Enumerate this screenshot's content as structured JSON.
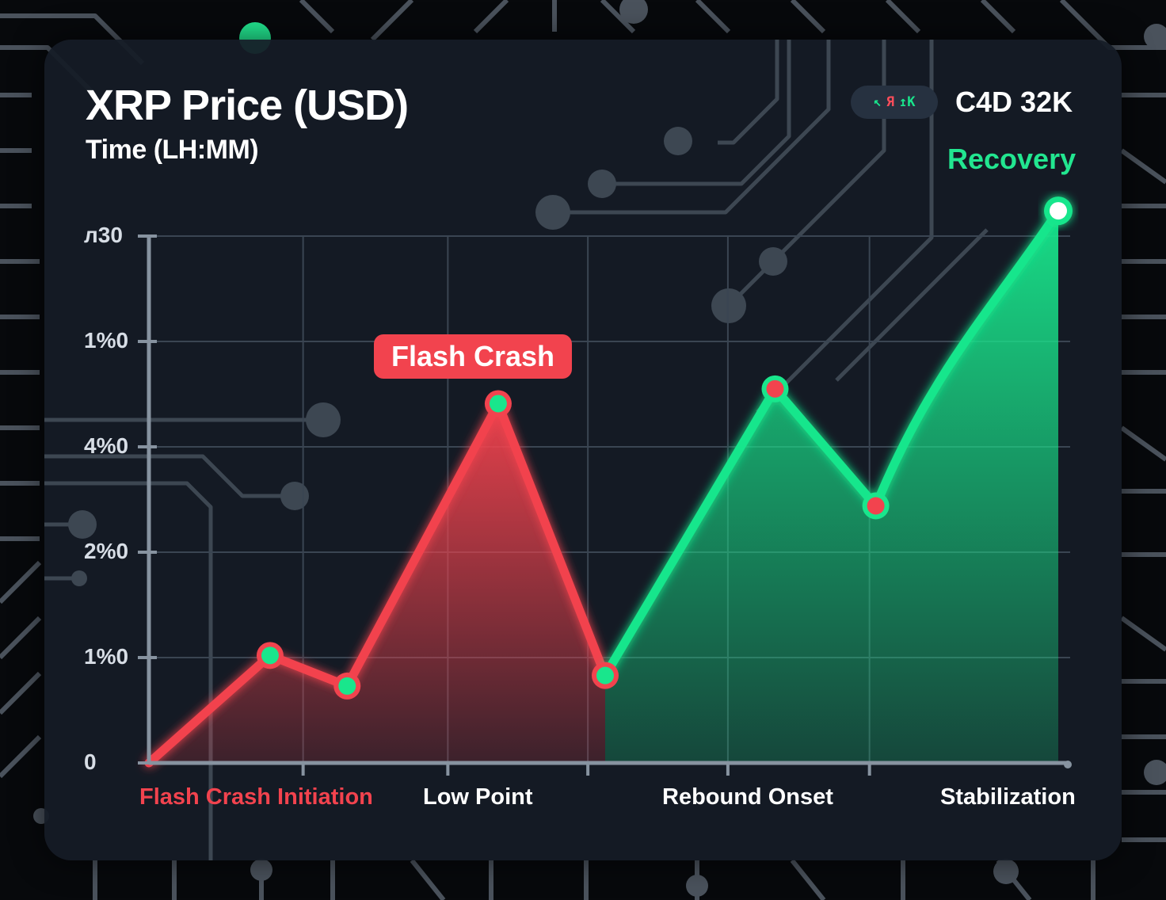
{
  "header": {
    "title": "XRP Price (USD)",
    "subtitle": "Time (LH:MM)",
    "badge_parts": [
      "↖",
      "Я",
      "↥K"
    ],
    "value": "C4D 32K"
  },
  "annotations": {
    "crash_label": "Flash Crash",
    "recovery_label": "Recovery"
  },
  "colors": {
    "crash": "#f2434e",
    "recovery": "#19e68c",
    "panel": "#151c26",
    "grid": "#3a4552"
  },
  "chart_data": {
    "type": "area",
    "title": "XRP Price (USD)",
    "xlabel": "Time (LH:MM)",
    "ylabel": "",
    "y_tick_labels": [
      "0",
      "1%0",
      "2%0",
      "4%0",
      "1%0",
      "л30"
    ],
    "x_tick_labels": [
      "Flash Crash Initiation",
      "Low Point",
      "Rebound Onset",
      "Stabilization"
    ],
    "x": [
      0,
      0.77,
      1.26,
      2.22,
      2.9,
      3.98,
      4.62,
      5.78
    ],
    "ylim": [
      0,
      5
    ],
    "grid": true,
    "legend": "none",
    "series": [
      {
        "segment": "crash",
        "color": "#f2434e",
        "points": [
          {
            "x": 0,
            "y": 0.0
          },
          {
            "x": 0.77,
            "y": 1.02
          },
          {
            "x": 1.26,
            "y": 0.73
          },
          {
            "x": 2.22,
            "y": 3.41
          },
          {
            "x": 2.9,
            "y": 0.83
          }
        ],
        "marker_fill": "#19e68c"
      },
      {
        "segment": "recovery",
        "color": "#19e68c",
        "points": [
          {
            "x": 2.9,
            "y": 0.83
          },
          {
            "x": 3.98,
            "y": 3.55
          },
          {
            "x": 4.62,
            "y": 2.44
          },
          {
            "x": 5.78,
            "y": 5.24
          }
        ],
        "marker_fill": "#f2434e"
      }
    ]
  }
}
